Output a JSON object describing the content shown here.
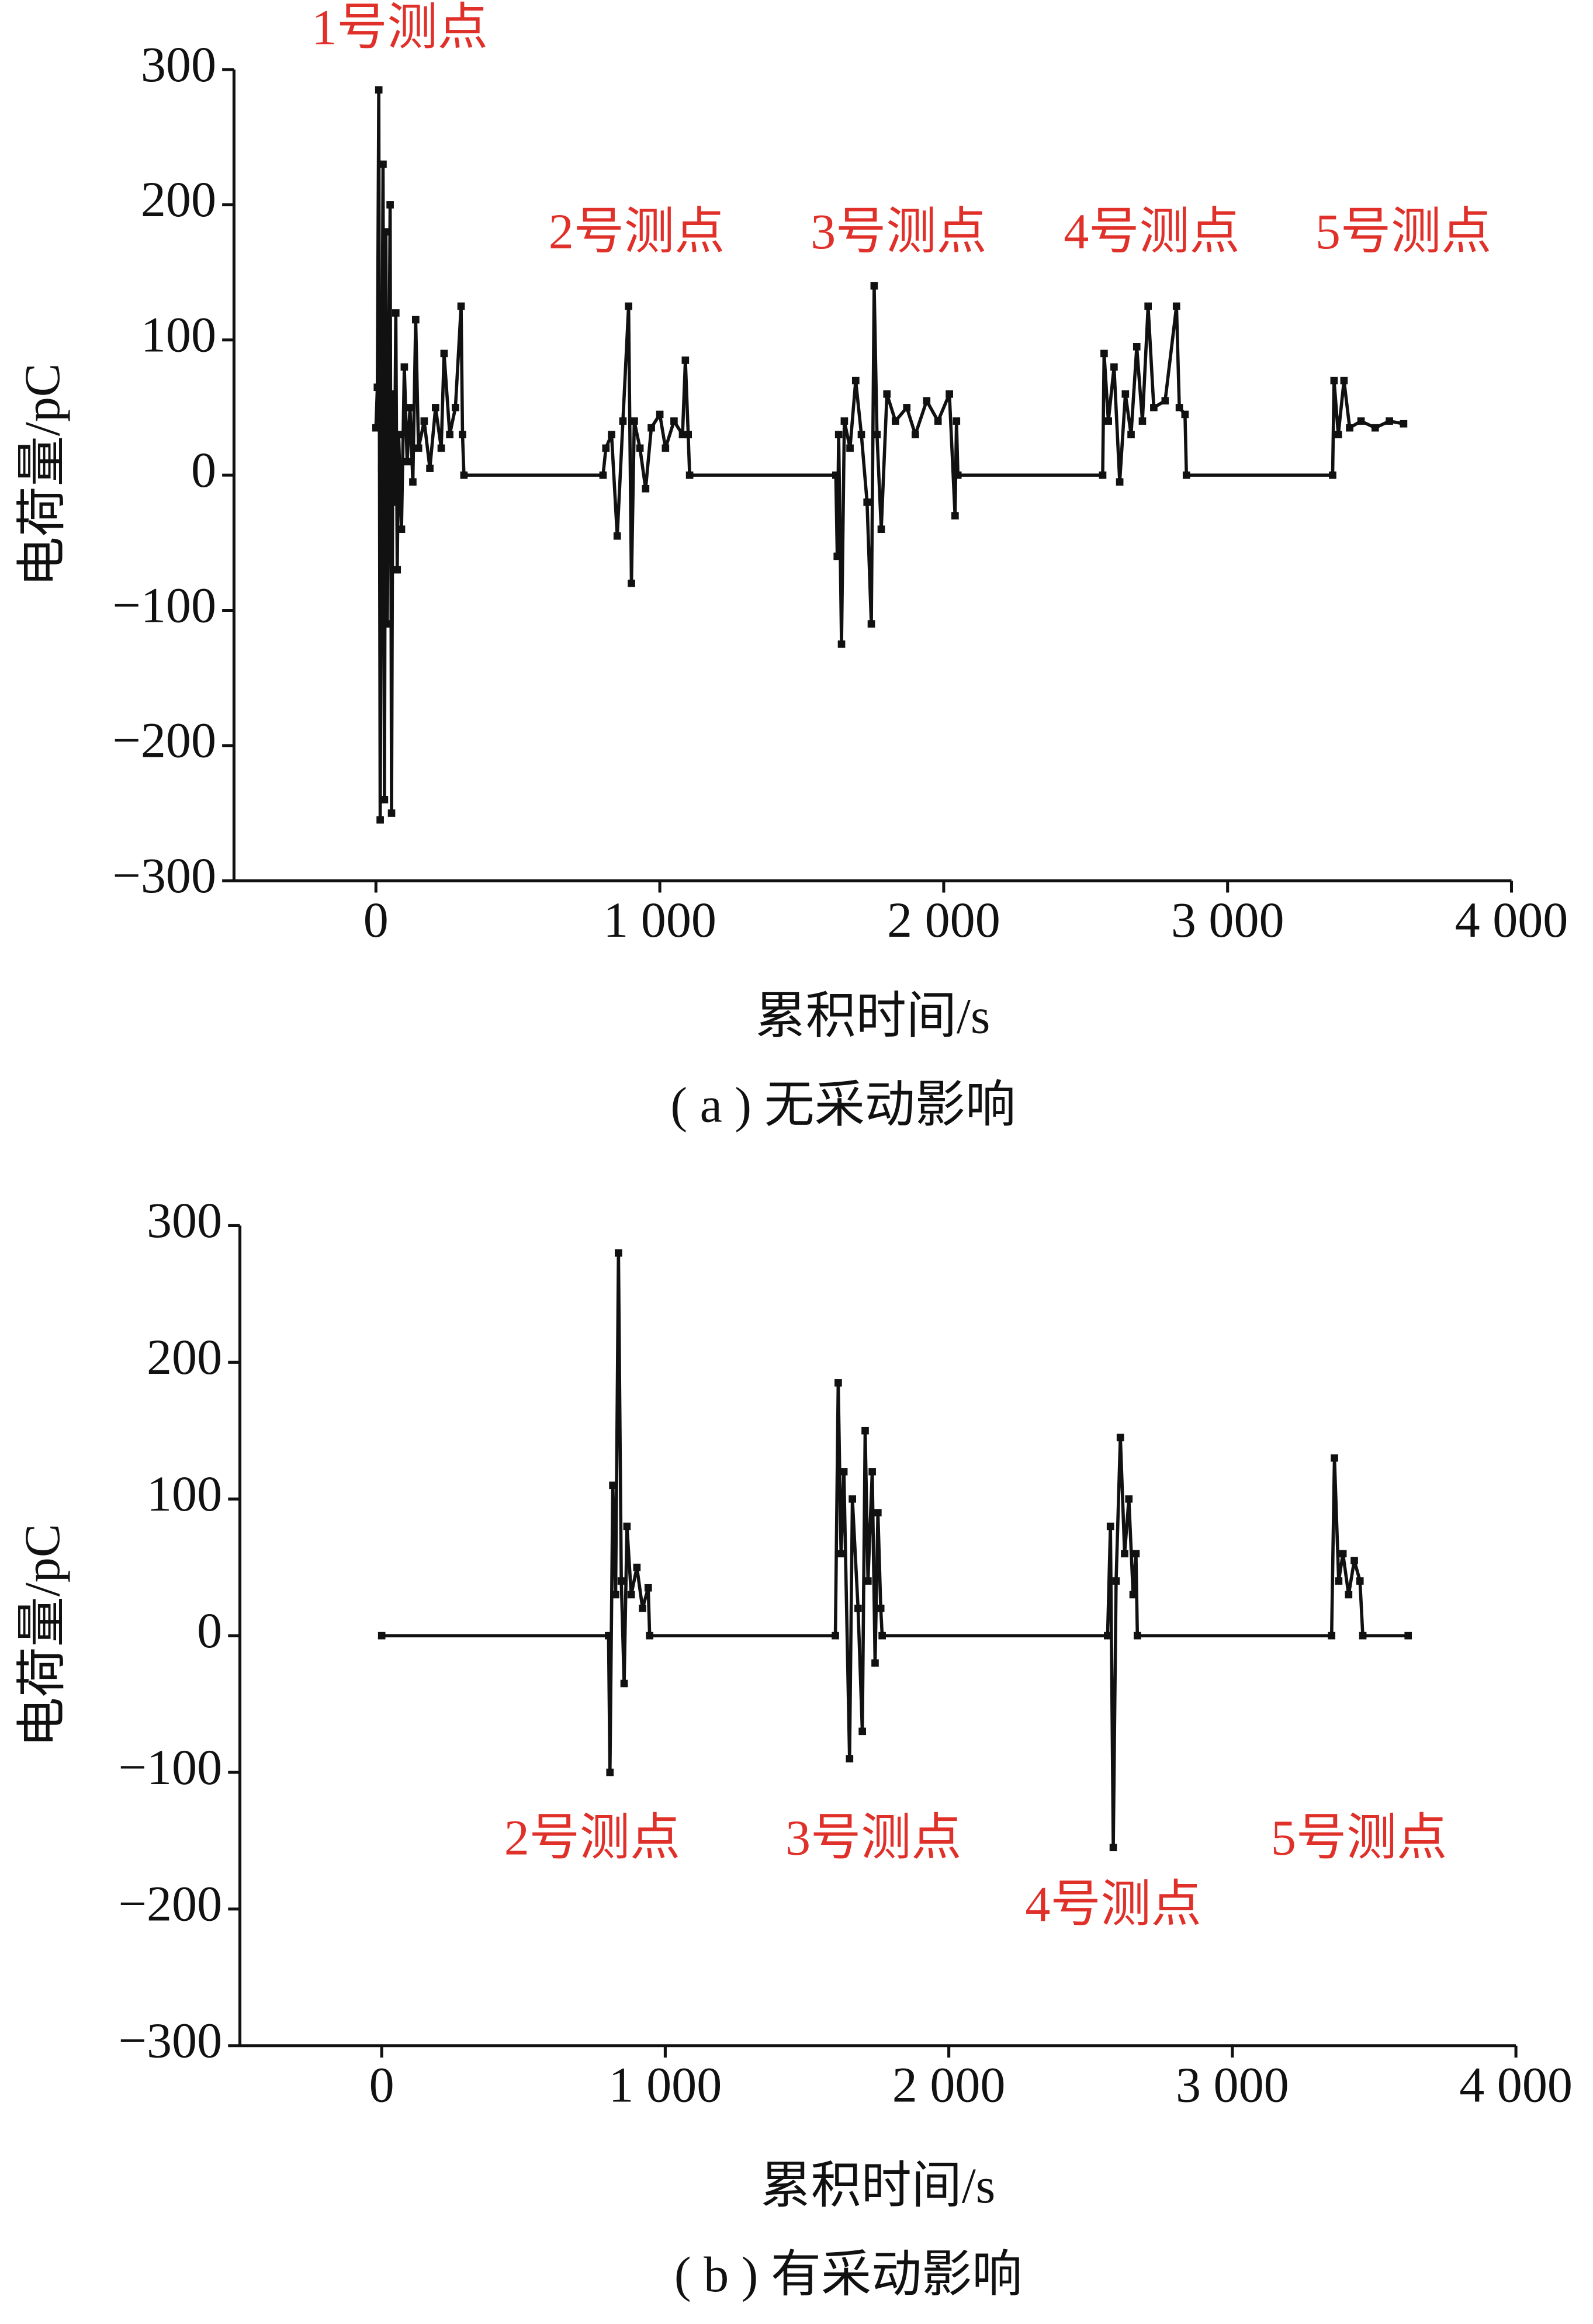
{
  "chart_data": [
    {
      "type": "line",
      "x_label": "累积时间/s",
      "y_label": "电荷量/pC",
      "caption": "( a ) 无采动影响",
      "color": "#111111",
      "annotations": [
        "1号测点",
        "2号测点",
        "3号测点",
        "4号测点",
        "5号测点"
      ],
      "xlim": [
        -500,
        4000
      ],
      "ylim": [
        -300,
        300
      ],
      "xticks": [
        0,
        {
          "value": 1000,
          "label": "1 000"
        },
        {
          "value": 2000,
          "label": "2 000"
        },
        {
          "value": 3000,
          "label": "3 000"
        },
        {
          "value": 4000,
          "label": "4 000"
        }
      ],
      "yticks": [
        {
          "value": -300,
          "label": "−300"
        },
        {
          "value": -200,
          "label": "−200"
        },
        {
          "value": -100,
          "label": "−100"
        },
        0,
        100,
        200,
        300
      ],
      "x": [
        0,
        5,
        10,
        15,
        20,
        25,
        30,
        35,
        40,
        45,
        50,
        55,
        60,
        65,
        70,
        75,
        80,
        90,
        100,
        110,
        120,
        130,
        140,
        150,
        170,
        190,
        210,
        230,
        240,
        260,
        280,
        300,
        305,
        310,
        800,
        810,
        830,
        850,
        870,
        890,
        900,
        910,
        930,
        950,
        970,
        1000,
        1020,
        1050,
        1080,
        1090,
        1100,
        1105,
        1620,
        1625,
        1630,
        1640,
        1650,
        1670,
        1690,
        1710,
        1730,
        1745,
        1755,
        1765,
        1780,
        1800,
        1830,
        1870,
        1900,
        1940,
        1980,
        2020,
        2040,
        2045,
        2050,
        2560,
        2565,
        2580,
        2600,
        2620,
        2640,
        2660,
        2680,
        2700,
        2720,
        2740,
        2780,
        2820,
        2830,
        2850,
        2855,
        3370,
        3375,
        3390,
        3410,
        3430,
        3470,
        3520,
        3570,
        3620
      ],
      "series": [
        {
          "name": "电荷量",
          "values": [
            35,
            65,
            285,
            -255,
            5,
            230,
            -240,
            180,
            -110,
            40,
            200,
            -250,
            60,
            -20,
            120,
            -70,
            30,
            -40,
            80,
            10,
            50,
            -5,
            115,
            20,
            40,
            5,
            50,
            20,
            90,
            30,
            50,
            125,
            30,
            0,
            0,
            20,
            30,
            -45,
            40,
            125,
            -80,
            40,
            20,
            -10,
            35,
            45,
            20,
            40,
            30,
            85,
            30,
            0,
            0,
            -60,
            30,
            -125,
            40,
            20,
            70,
            30,
            -20,
            -110,
            140,
            30,
            -40,
            60,
            40,
            50,
            30,
            55,
            40,
            60,
            -30,
            40,
            0,
            0,
            90,
            40,
            80,
            -5,
            60,
            30,
            95,
            40,
            125,
            50,
            55,
            125,
            50,
            45,
            0,
            0,
            70,
            30,
            70,
            35,
            40,
            35,
            40,
            38
          ]
        }
      ]
    },
    {
      "type": "line",
      "x_label": "累积时间/s",
      "y_label": "电荷量/pC",
      "caption": "( b ) 有采动影响",
      "color": "#111111",
      "annotations": [
        "2号测点",
        "3号测点",
        "4号测点",
        "5号测点"
      ],
      "xlim": [
        -500,
        4000
      ],
      "ylim": [
        -300,
        300
      ],
      "xticks": [
        0,
        {
          "value": 1000,
          "label": "1 000"
        },
        {
          "value": 2000,
          "label": "2 000"
        },
        {
          "value": 3000,
          "label": "3 000"
        },
        {
          "value": 4000,
          "label": "4 000"
        }
      ],
      "yticks": [
        {
          "value": -300,
          "label": "−300"
        },
        {
          "value": -200,
          "label": "−200"
        },
        {
          "value": -100,
          "label": "−100"
        },
        0,
        100,
        200,
        300
      ],
      "x": [
        0,
        800,
        805,
        815,
        825,
        835,
        845,
        855,
        865,
        880,
        900,
        920,
        940,
        945,
        1600,
        1610,
        1620,
        1630,
        1650,
        1660,
        1680,
        1695,
        1705,
        1715,
        1730,
        1740,
        1750,
        1760,
        1765,
        2560,
        2570,
        2580,
        2590,
        2605,
        2620,
        2635,
        2650,
        2660,
        2665,
        3350,
        3360,
        3375,
        3390,
        3410,
        3430,
        3450,
        3460,
        3620
      ],
      "series": [
        {
          "name": "电荷量",
          "values": [
            0,
            0,
            -100,
            110,
            30,
            280,
            40,
            -35,
            80,
            30,
            50,
            20,
            35,
            0,
            0,
            185,
            60,
            120,
            -90,
            100,
            20,
            -70,
            150,
            40,
            120,
            -20,
            90,
            20,
            0,
            0,
            80,
            -155,
            40,
            145,
            60,
            100,
            30,
            60,
            0,
            0,
            130,
            40,
            60,
            30,
            55,
            40,
            0,
            0
          ]
        }
      ]
    }
  ]
}
